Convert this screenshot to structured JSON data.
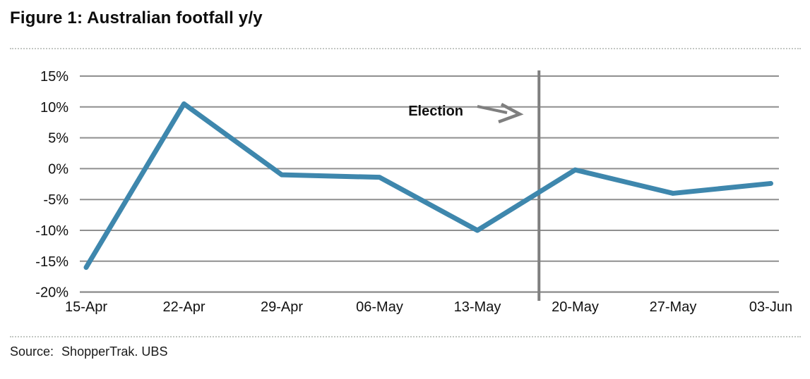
{
  "header": {
    "title": "Figure 1: Australian footfall y/y"
  },
  "chart_data": {
    "type": "line",
    "title": "Figure 1: Australian footfall y/y",
    "categories": [
      "15-Apr",
      "22-Apr",
      "29-Apr",
      "06-May",
      "13-May",
      "20-May",
      "27-May",
      "03-Jun"
    ],
    "values": [
      -16,
      10.5,
      -1,
      -1.4,
      -10,
      -0.2,
      -4,
      -2.4
    ],
    "unit": "%",
    "ylim": [
      -20,
      15
    ],
    "ytick_step": 5,
    "ytick_labels": [
      "15%",
      "10%",
      "5%",
      "0%",
      "-5%",
      "-10%",
      "-15%",
      "-20%"
    ],
    "xlabel": "",
    "ylabel": "",
    "grid": "horizontal",
    "legend": "none",
    "line_color": "#3E87AD",
    "grid_color": "#8f8f8f",
    "annotation_color": "#7f7f7f",
    "annotation": {
      "text": "Election",
      "vline_x_index": 4.63
    }
  },
  "footer": {
    "source_label": "Source:",
    "source_text": "ShopperTrak. UBS"
  }
}
